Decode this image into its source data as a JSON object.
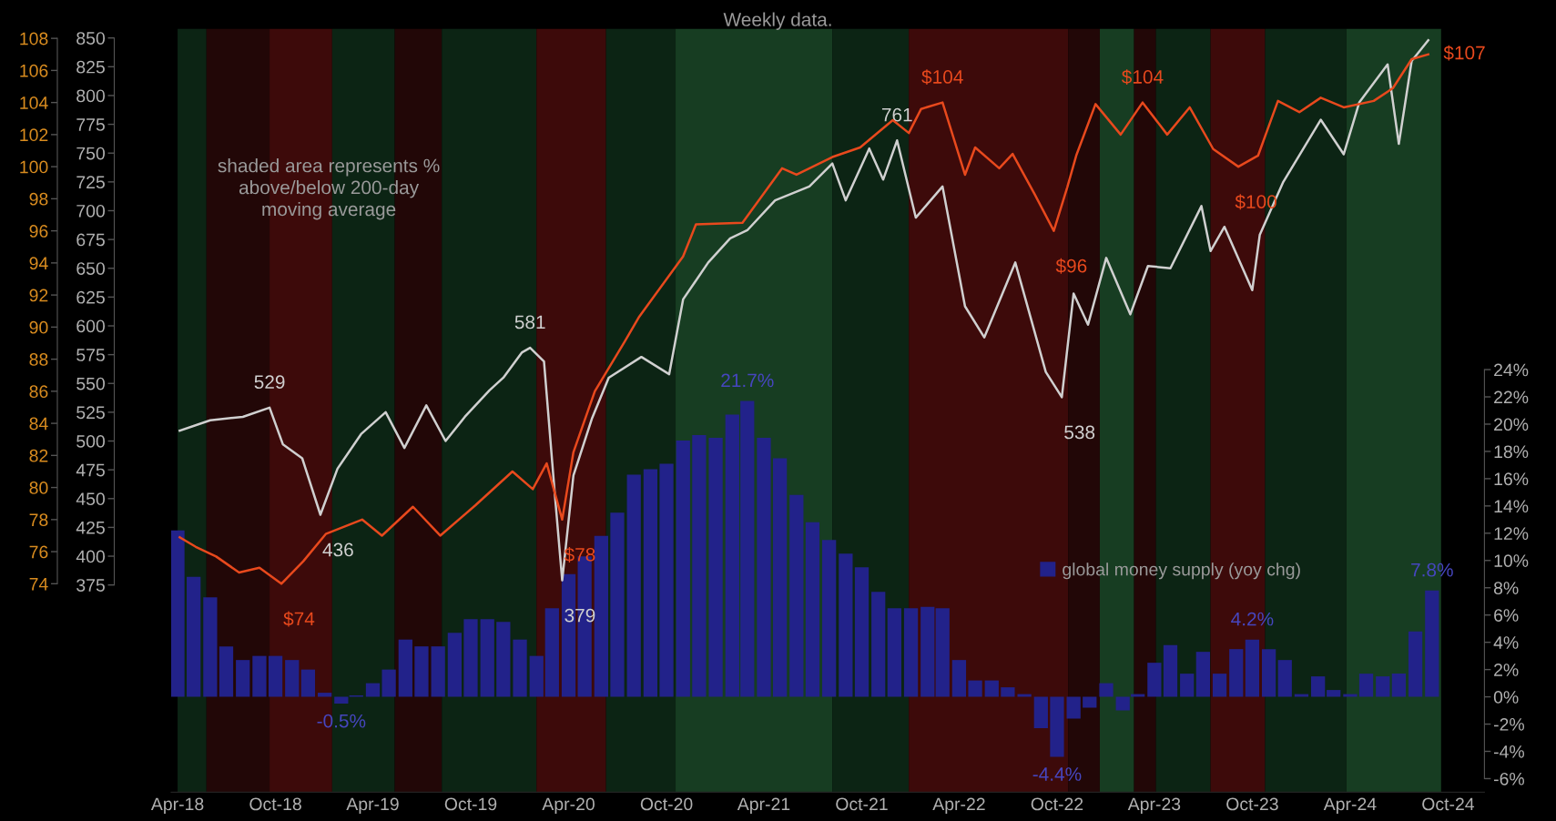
{
  "chart_data": {
    "type": "line",
    "title": "Weekly data.",
    "annotations": [
      "shaded area represents %\nabove/below 200-day\nmoving average"
    ],
    "xlim": [
      "2018-03-20",
      "2024-12-08"
    ],
    "xticks": [
      {
        "value": "2018-04-01",
        "label": "Apr-18"
      },
      {
        "value": "2018-10-01",
        "label": "Oct-18"
      },
      {
        "value": "2019-04-01",
        "label": "Apr-19"
      },
      {
        "value": "2019-10-01",
        "label": "Oct-19"
      },
      {
        "value": "2020-04-01",
        "label": "Apr-20"
      },
      {
        "value": "2020-10-01",
        "label": "Oct-20"
      },
      {
        "value": "2021-04-01",
        "label": "Apr-21"
      },
      {
        "value": "2021-10-01",
        "label": "Oct-21"
      },
      {
        "value": "2022-04-01",
        "label": "Apr-22"
      },
      {
        "value": "2022-10-01",
        "label": "Oct-22"
      },
      {
        "value": "2023-04-01",
        "label": "Apr-23"
      },
      {
        "value": "2023-10-01",
        "label": "Oct-23"
      },
      {
        "value": "2024-04-01",
        "label": "Apr-24"
      },
      {
        "value": "2024-10-01",
        "label": "Oct-24"
      }
    ],
    "ylim": [
      195,
      858
    ],
    "yticks": [
      375,
      400,
      425,
      450,
      475,
      500,
      525,
      550,
      575,
      600,
      625,
      650,
      675,
      700,
      725,
      750,
      775,
      800,
      825,
      850
    ],
    "y2lim": [
      61,
      108.6
    ],
    "y2ticks": [
      74,
      76,
      78,
      80,
      82,
      84,
      86,
      88,
      90,
      92,
      94,
      96,
      98,
      100,
      102,
      104,
      106,
      108
    ],
    "y3lim": [
      -7,
      49
    ],
    "y3ticks": [
      {
        "value": -6,
        "label": "-6%"
      },
      {
        "value": -4,
        "label": "-4%"
      },
      {
        "value": -2,
        "label": "-2%"
      },
      {
        "value": 0,
        "label": "0%"
      },
      {
        "value": 2,
        "label": "2%"
      },
      {
        "value": 4,
        "label": "4%"
      },
      {
        "value": 6,
        "label": "6%"
      },
      {
        "value": 8,
        "label": "8%"
      },
      {
        "value": 10,
        "label": "10%"
      },
      {
        "value": 12,
        "label": "12%"
      },
      {
        "value": 14,
        "label": "14%"
      },
      {
        "value": 16,
        "label": "16%"
      },
      {
        "value": 18,
        "label": "18%"
      },
      {
        "value": 20,
        "label": "20%"
      },
      {
        "value": 22,
        "label": "22%"
      },
      {
        "value": 24,
        "label": "24%"
      }
    ],
    "legend": "right",
    "bands": [
      {
        "axis": "x",
        "from": "2018-04-01",
        "to": "2018-05-25",
        "color": "#0c2414"
      },
      {
        "axis": "x",
        "from": "2018-05-25",
        "to": "2018-09-20",
        "color": "#220707"
      },
      {
        "axis": "x",
        "from": "2018-09-20",
        "to": "2019-01-15",
        "color": "#3d0a0a"
      },
      {
        "axis": "x",
        "from": "2019-01-15",
        "to": "2019-05-12",
        "color": "#0c2414"
      },
      {
        "axis": "x",
        "from": "2019-05-12",
        "to": "2019-08-08",
        "color": "#220707"
      },
      {
        "axis": "x",
        "from": "2019-08-08",
        "to": "2020-02-01",
        "color": "#0c2414"
      },
      {
        "axis": "x",
        "from": "2020-02-01",
        "to": "2020-06-10",
        "color": "#3d0a0a"
      },
      {
        "axis": "x",
        "from": "2020-06-10",
        "to": "2020-10-18",
        "color": "#0c2414"
      },
      {
        "axis": "x",
        "from": "2020-10-18",
        "to": "2021-08-07",
        "color": "#173d22"
      },
      {
        "axis": "x",
        "from": "2021-08-07",
        "to": "2021-12-28",
        "color": "#0c2414"
      },
      {
        "axis": "x",
        "from": "2021-12-28",
        "to": "2022-10-22",
        "color": "#3d0a0a"
      },
      {
        "axis": "x",
        "from": "2022-10-22",
        "to": "2022-12-20",
        "color": "#220707"
      },
      {
        "axis": "x",
        "from": "2022-12-20",
        "to": "2023-02-22",
        "color": "#173d22"
      },
      {
        "axis": "x",
        "from": "2023-02-22",
        "to": "2023-04-04",
        "color": "#220707"
      },
      {
        "axis": "x",
        "from": "2023-04-04",
        "to": "2023-07-15",
        "color": "#0c2414"
      },
      {
        "axis": "x",
        "from": "2023-07-15",
        "to": "2023-10-25",
        "color": "#3d0a0a"
      },
      {
        "axis": "x",
        "from": "2023-10-25",
        "to": "2024-03-25",
        "color": "#0c2414"
      },
      {
        "axis": "x",
        "from": "2024-03-25",
        "to": "2024-09-18",
        "color": "#173d22"
      }
    ],
    "series": [
      {
        "type": "bar",
        "axis": "y3",
        "name": "global money supply (yoy chg)",
        "color": "#22228a",
        "x": [
          "2018-04",
          "2018-05",
          "2018-06",
          "2018-07",
          "2018-08",
          "2018-09",
          "2018-10",
          "2018-11",
          "2018-12",
          "2019-01",
          "2019-02",
          "2019-03",
          "2019-04",
          "2019-05",
          "2019-06",
          "2019-07",
          "2019-08",
          "2019-09",
          "2019-10",
          "2019-11",
          "2019-12",
          "2020-01",
          "2020-02",
          "2020-03",
          "2020-04",
          "2020-05",
          "2020-06",
          "2020-07",
          "2020-08",
          "2020-09",
          "2020-10",
          "2020-11",
          "2020-12",
          "2021-01",
          "2021-02",
          "2021-03",
          "2021-04",
          "2021-05",
          "2021-06",
          "2021-07",
          "2021-08",
          "2021-09",
          "2021-10",
          "2021-11",
          "2021-12",
          "2022-01",
          "2022-02",
          "2022-03",
          "2022-04",
          "2022-05",
          "2022-06",
          "2022-07",
          "2022-08",
          "2022-09",
          "2022-10",
          "2022-11",
          "2022-12",
          "2023-01",
          "2023-02",
          "2023-03",
          "2023-04",
          "2023-05",
          "2023-06",
          "2023-07",
          "2023-08",
          "2023-09",
          "2023-10",
          "2023-11",
          "2023-12",
          "2024-01",
          "2024-02",
          "2024-03",
          "2024-04",
          "2024-05",
          "2024-06",
          "2024-07",
          "2024-08",
          "2024-09"
        ],
        "values": [
          12.2,
          8.8,
          7.3,
          3.7,
          2.7,
          3.0,
          3.0,
          2.7,
          2.0,
          0.3,
          -0.5,
          0.1,
          1.0,
          2.0,
          4.2,
          3.7,
          3.7,
          4.7,
          5.7,
          5.7,
          5.5,
          4.2,
          3.0,
          6.5,
          9.0,
          10.3,
          11.8,
          13.5,
          16.3,
          16.7,
          17.1,
          18.8,
          19.2,
          19.0,
          20.7,
          21.7,
          19.0,
          17.5,
          14.8,
          12.8,
          11.5,
          10.5,
          9.5,
          7.7,
          6.5,
          6.5,
          6.6,
          6.5,
          2.7,
          1.2,
          1.2,
          0.7,
          0.2,
          -2.3,
          -4.4,
          -1.6,
          -0.8,
          1.0,
          -1.0,
          0.2,
          2.5,
          3.8,
          1.7,
          3.3,
          1.7,
          3.5,
          4.2,
          3.5,
          2.7,
          0.2,
          1.5,
          0.5,
          0.2,
          1.7,
          1.5,
          1.7,
          4.8,
          7.8
        ],
        "value_labels": [
          null,
          null,
          null,
          null,
          null,
          null,
          null,
          null,
          null,
          null,
          "-0.5%",
          null,
          null,
          null,
          null,
          null,
          null,
          null,
          null,
          null,
          null,
          null,
          null,
          null,
          null,
          null,
          null,
          null,
          null,
          null,
          null,
          null,
          null,
          null,
          null,
          "21.7%",
          null,
          null,
          null,
          null,
          null,
          null,
          null,
          null,
          null,
          null,
          null,
          null,
          null,
          null,
          null,
          null,
          null,
          null,
          "-4.4%",
          null,
          null,
          null,
          null,
          null,
          null,
          null,
          null,
          null,
          null,
          null,
          "4.2%",
          null,
          null,
          null,
          null,
          null,
          null,
          null,
          null,
          null,
          null,
          "7.8%"
        ]
      },
      {
        "axis": "y",
        "color": "#d0d0d0",
        "x": [
          "2018-04-05",
          "2018-06-01",
          "2018-08-01",
          "2018-09-20",
          "2018-10-15",
          "2018-11-20",
          "2018-12-24",
          "2019-01-25",
          "2019-03-10",
          "2019-04-25",
          "2019-05-30",
          "2019-07-10",
          "2019-08-15",
          "2019-09-20",
          "2019-11-05",
          "2019-12-01",
          "2020-01-05",
          "2020-01-20",
          "2020-02-15",
          "2020-03-06",
          "2020-03-20",
          "2020-04-10",
          "2020-05-15",
          "2020-06-15",
          "2020-08-15",
          "2020-10-06",
          "2020-11-01",
          "2020-12-18",
          "2021-01-28",
          "2021-03-01",
          "2021-04-22",
          "2021-06-25",
          "2021-08-07",
          "2021-09-01",
          "2021-10-15",
          "2021-11-10",
          "2021-12-06",
          "2022-01-10",
          "2022-03-01",
          "2022-04-12",
          "2022-05-18",
          "2022-07-15",
          "2022-09-10",
          "2022-10-10",
          "2022-11-01",
          "2022-11-28",
          "2023-01-01",
          "2023-02-15",
          "2023-03-20",
          "2023-05-01",
          "2023-06-28",
          "2023-07-15",
          "2023-08-10",
          "2023-10-01",
          "2023-10-15",
          "2023-11-28",
          "2024-02-06",
          "2024-03-20",
          "2024-04-18",
          "2024-06-10",
          "2024-07-01",
          "2024-07-25",
          "2024-08-25"
        ],
        "values": [
          509,
          518,
          521,
          529,
          497,
          485,
          436,
          476,
          506,
          525,
          494,
          531,
          500,
          521,
          544,
          555,
          577,
          581,
          569,
          455,
          379,
          470,
          520,
          555,
          573,
          558,
          623,
          655,
          676,
          683,
          709,
          721,
          741,
          709,
          754,
          727,
          761,
          694,
          721,
          617,
          590,
          655,
          560,
          538,
          628,
          601,
          659,
          610,
          652,
          650,
          704,
          665,
          686,
          631,
          679,
          725,
          779,
          749,
          794,
          827,
          758,
          830,
          848
        ],
        "value_labels": [
          null,
          null,
          null,
          "529",
          null,
          null,
          "436",
          null,
          null,
          null,
          null,
          null,
          null,
          null,
          null,
          null,
          null,
          "581",
          null,
          null,
          "379",
          null,
          null,
          null,
          null,
          null,
          null,
          null,
          null,
          null,
          null,
          null,
          null,
          null,
          null,
          null,
          "761",
          null,
          null,
          null,
          null,
          null,
          null,
          "538",
          null,
          null,
          null,
          null,
          null,
          null,
          null,
          null,
          null,
          null,
          null,
          null,
          null,
          null,
          null,
          null,
          null,
          null,
          null
        ]
      },
      {
        "axis": "y2",
        "color": "#e8491d",
        "x": [
          "2018-04-05",
          "2018-05-05",
          "2018-06-12",
          "2018-07-25",
          "2018-09-01",
          "2018-10-12",
          "2018-11-22",
          "2019-01-03",
          "2019-03-12",
          "2019-04-18",
          "2019-06-15",
          "2019-08-05",
          "2019-10-10",
          "2019-12-18",
          "2020-01-25",
          "2020-02-20",
          "2020-03-20",
          "2020-04-10",
          "2020-05-01",
          "2020-05-20",
          "2020-07-15",
          "2020-08-10",
          "2020-11-01",
          "2020-11-25",
          "2021-02-20",
          "2021-05-05",
          "2021-06-01",
          "2021-08-07",
          "2021-09-28",
          "2021-11-28",
          "2021-12-28",
          "2022-01-20",
          "2022-03-01",
          "2022-04-12",
          "2022-05-01",
          "2022-06-15",
          "2022-07-10",
          "2022-08-20",
          "2022-09-25",
          "2022-10-20",
          "2022-11-06",
          "2022-12-12",
          "2023-01-28",
          "2023-03-10",
          "2023-04-25",
          "2023-06-06",
          "2023-07-20",
          "2023-09-05",
          "2023-10-12",
          "2023-11-18",
          "2023-12-28",
          "2024-02-06",
          "2024-03-20",
          "2024-05-15",
          "2024-06-20",
          "2024-07-25",
          "2024-08-25"
        ],
        "values": [
          76.9,
          76.3,
          75.7,
          74.7,
          75.0,
          74,
          75.4,
          77.1,
          78.0,
          77.0,
          78.8,
          77.0,
          78.9,
          81.0,
          79.9,
          81.5,
          78,
          82.2,
          84.2,
          86.0,
          89.1,
          90.6,
          94.4,
          96.4,
          96.5,
          99.9,
          99.5,
          100.6,
          101.2,
          102.9,
          102.1,
          103.6,
          104,
          99.5,
          101.2,
          99.9,
          100.8,
          98.3,
          96,
          98.7,
          100.7,
          103.9,
          102.0,
          104,
          102.0,
          103.7,
          101.1,
          100,
          100.7,
          104.1,
          103.4,
          104.3,
          103.7,
          104.1,
          104.9,
          106.7,
          107
        ],
        "value_labels": [
          null,
          null,
          null,
          null,
          null,
          "$74",
          null,
          null,
          null,
          null,
          null,
          null,
          null,
          null,
          null,
          null,
          "$78",
          null,
          null,
          null,
          null,
          null,
          null,
          null,
          null,
          null,
          null,
          null,
          null,
          null,
          null,
          null,
          "$104",
          null,
          null,
          null,
          null,
          null,
          "$96",
          null,
          null,
          null,
          null,
          "$104",
          null,
          null,
          null,
          "$100",
          null,
          null,
          null,
          null,
          null,
          null,
          null,
          null,
          "$107"
        ]
      }
    ]
  }
}
